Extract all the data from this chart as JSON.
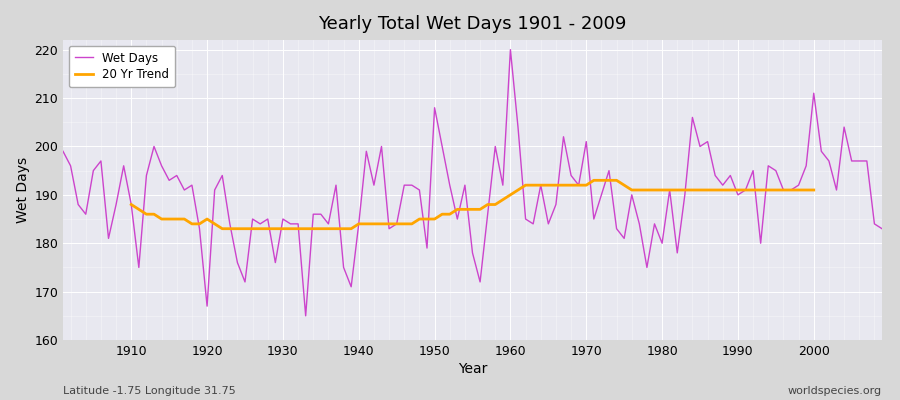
{
  "title": "Yearly Total Wet Days 1901 - 2009",
  "xlabel": "Year",
  "ylabel": "Wet Days",
  "subtitle_left": "Latitude -1.75 Longitude 31.75",
  "subtitle_right": "worldspecies.org",
  "line_color": "#CC44CC",
  "trend_color": "#FFA500",
  "fig_bg_color": "#D8D8D8",
  "plot_bg_color": "#E8E8F0",
  "ylim": [
    160,
    222
  ],
  "xlim": [
    1901,
    2009
  ],
  "yticks": [
    160,
    170,
    180,
    190,
    200,
    210,
    220
  ],
  "xticks": [
    1910,
    1920,
    1930,
    1940,
    1950,
    1960,
    1970,
    1980,
    1990,
    2000
  ],
  "years": [
    1901,
    1902,
    1903,
    1904,
    1905,
    1906,
    1907,
    1908,
    1909,
    1910,
    1911,
    1912,
    1913,
    1914,
    1915,
    1916,
    1917,
    1918,
    1919,
    1920,
    1921,
    1922,
    1923,
    1924,
    1925,
    1926,
    1927,
    1928,
    1929,
    1930,
    1931,
    1932,
    1933,
    1934,
    1935,
    1936,
    1937,
    1938,
    1939,
    1940,
    1941,
    1942,
    1943,
    1944,
    1945,
    1946,
    1947,
    1948,
    1949,
    1950,
    1951,
    1952,
    1953,
    1954,
    1955,
    1956,
    1957,
    1958,
    1959,
    1960,
    1961,
    1962,
    1963,
    1964,
    1965,
    1966,
    1967,
    1968,
    1969,
    1970,
    1971,
    1972,
    1973,
    1974,
    1975,
    1976,
    1977,
    1978,
    1979,
    1980,
    1981,
    1982,
    1983,
    1984,
    1985,
    1986,
    1987,
    1988,
    1989,
    1990,
    1991,
    1992,
    1993,
    1994,
    1995,
    1996,
    1997,
    1998,
    1999,
    2000,
    2001,
    2002,
    2003,
    2004,
    2005,
    2006,
    2007,
    2008,
    2009
  ],
  "wet_days": [
    199,
    196,
    188,
    186,
    195,
    197,
    181,
    188,
    196,
    188,
    175,
    194,
    200,
    196,
    193,
    194,
    191,
    192,
    183,
    167,
    191,
    194,
    184,
    176,
    172,
    185,
    184,
    185,
    176,
    185,
    184,
    184,
    165,
    186,
    186,
    184,
    192,
    175,
    171,
    184,
    199,
    192,
    200,
    183,
    184,
    192,
    192,
    191,
    179,
    208,
    200,
    192,
    185,
    192,
    178,
    172,
    186,
    200,
    192,
    220,
    204,
    185,
    184,
    192,
    184,
    188,
    202,
    194,
    192,
    201,
    185,
    190,
    195,
    183,
    181,
    190,
    184,
    175,
    184,
    180,
    191,
    178,
    190,
    206,
    200,
    201,
    194,
    192,
    194,
    190,
    191,
    195,
    180,
    196,
    195,
    191,
    191,
    192,
    196,
    211,
    199,
    197,
    191,
    204,
    197,
    197,
    197,
    184,
    183
  ],
  "trend_years": [
    1910,
    1911,
    1912,
    1913,
    1914,
    1915,
    1916,
    1917,
    1918,
    1919,
    1920,
    1921,
    1922,
    1923,
    1924,
    1925,
    1926,
    1927,
    1928,
    1929,
    1930,
    1931,
    1932,
    1933,
    1934,
    1935,
    1936,
    1937,
    1938,
    1939,
    1940,
    1941,
    1942,
    1943,
    1944,
    1945,
    1946,
    1947,
    1948,
    1949,
    1950,
    1951,
    1952,
    1953,
    1954,
    1955,
    1956,
    1957,
    1958,
    1959,
    1960,
    1961,
    1962,
    1963,
    1964,
    1965,
    1966,
    1967,
    1968,
    1969,
    1970,
    1971,
    1972,
    1973,
    1974,
    1975,
    1976,
    1977,
    1978,
    1979,
    1980,
    1981,
    1982,
    1983,
    1984,
    1985,
    1986,
    1987,
    1988,
    1989,
    1990,
    1991,
    1992,
    1993,
    1994,
    1995,
    1996,
    1997,
    1998,
    1999,
    2000
  ],
  "trend_values": [
    188,
    187,
    186,
    186,
    185,
    185,
    185,
    185,
    184,
    184,
    185,
    184,
    183,
    183,
    183,
    183,
    183,
    183,
    183,
    183,
    183,
    183,
    183,
    183,
    183,
    183,
    183,
    183,
    183,
    183,
    184,
    184,
    184,
    184,
    184,
    184,
    184,
    184,
    185,
    185,
    185,
    186,
    186,
    187,
    187,
    187,
    187,
    188,
    188,
    189,
    190,
    191,
    192,
    192,
    192,
    192,
    192,
    192,
    192,
    192,
    192,
    193,
    193,
    193,
    193,
    192,
    191,
    191,
    191,
    191,
    191,
    191,
    191,
    191,
    191,
    191,
    191,
    191,
    191,
    191,
    191,
    191,
    191,
    191,
    191,
    191,
    191,
    191,
    191,
    191,
    191
  ]
}
